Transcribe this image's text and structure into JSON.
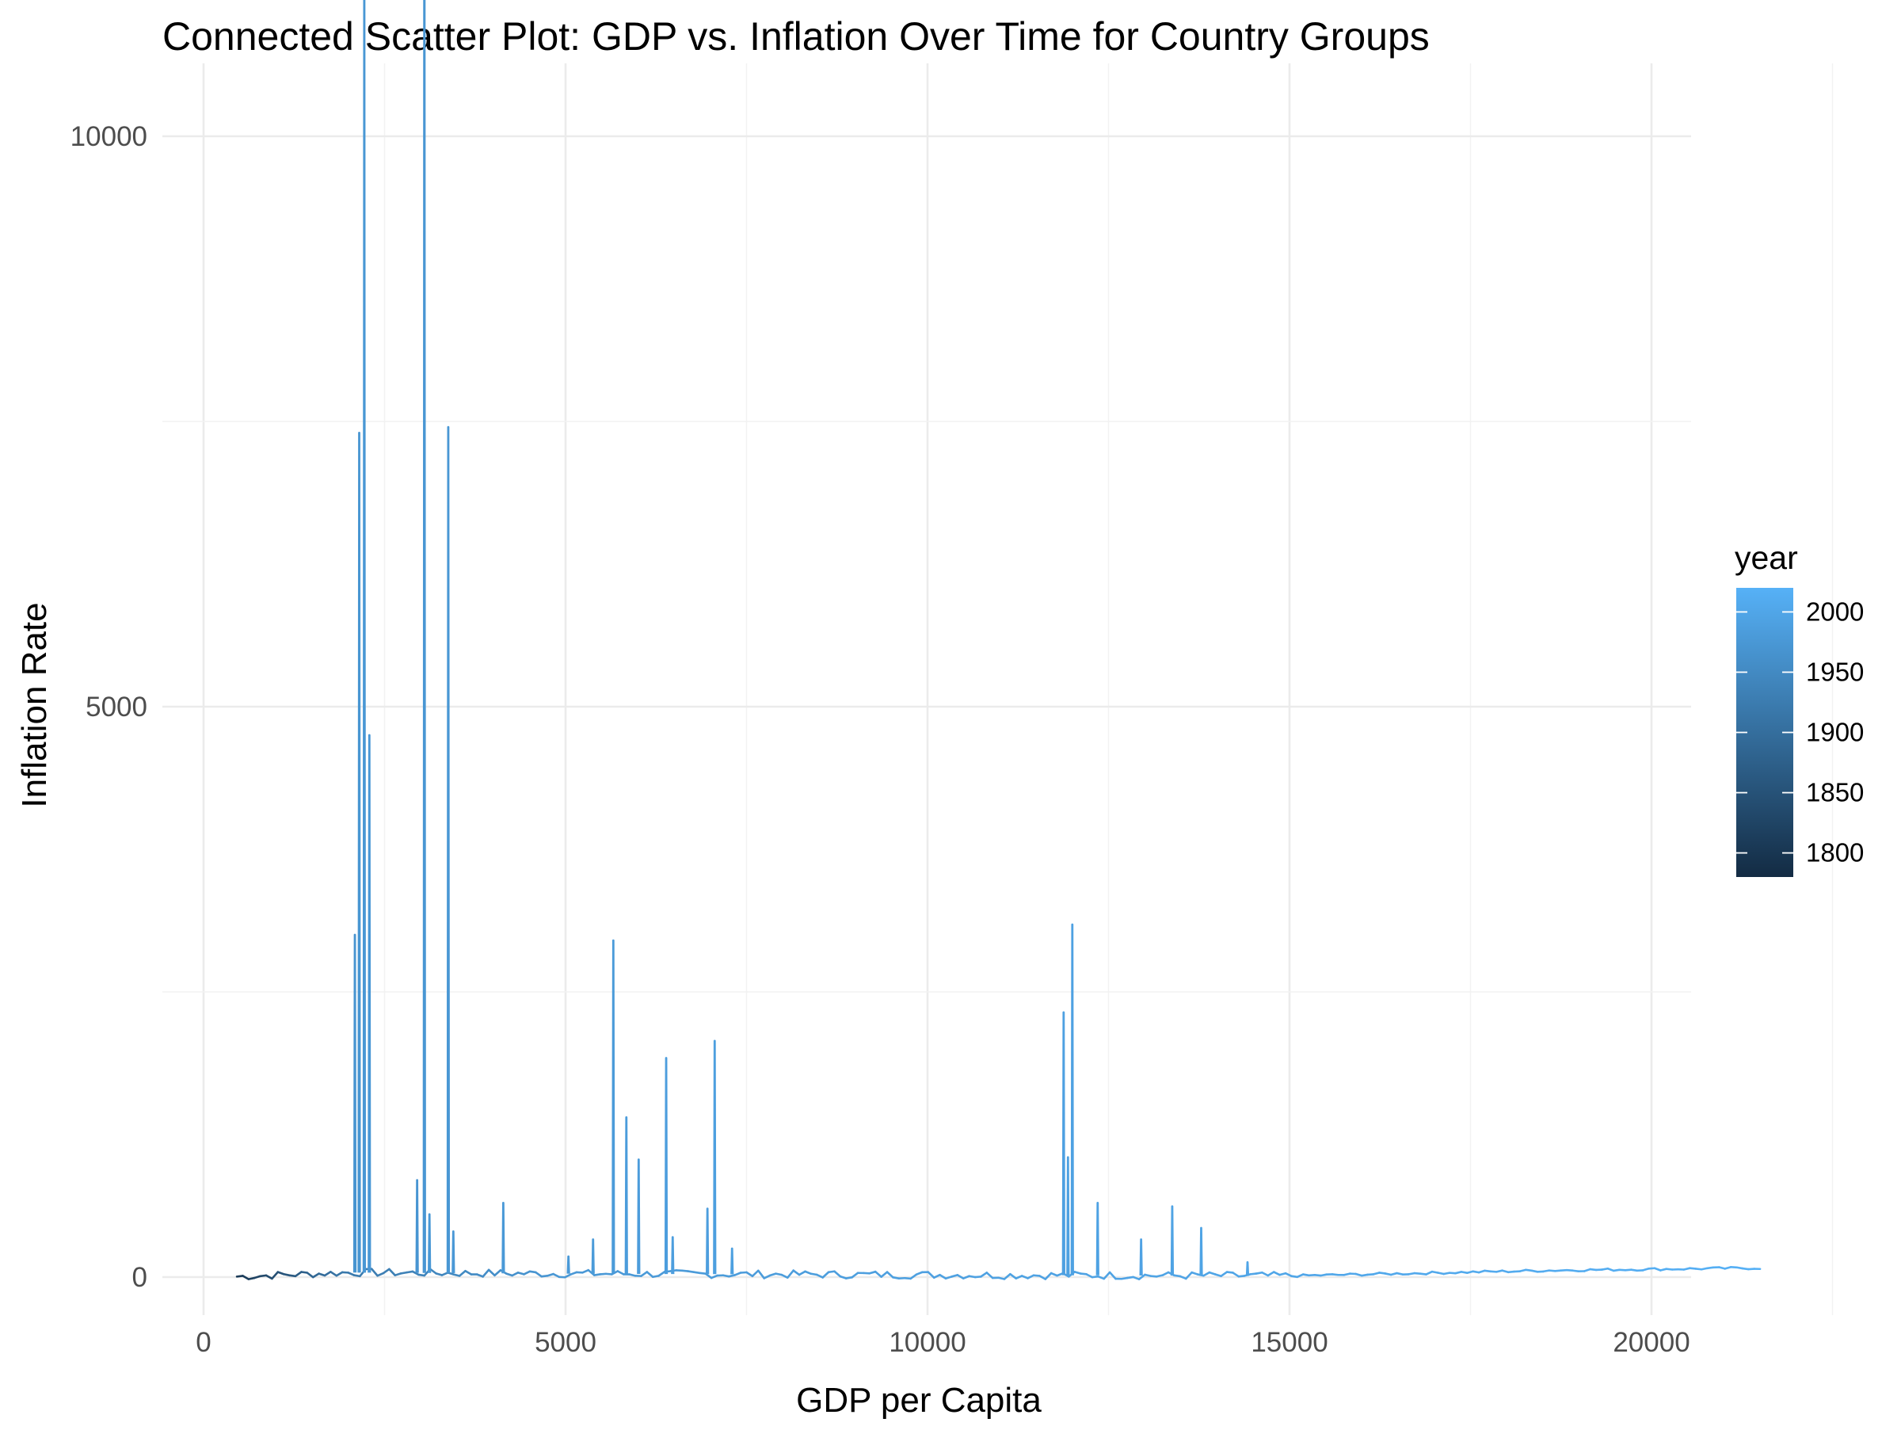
{
  "chart_data": {
    "type": "line",
    "title": "Connected Scatter Plot: GDP vs. Inflation Over Time for Country Groups",
    "xlabel": "GDP per Capita",
    "ylabel": "Inflation Rate",
    "xlim": [
      -1200,
      22600
    ],
    "ylim": [
      -700,
      13800
    ],
    "x_ticks": [
      0,
      5000,
      10000,
      15000,
      20000
    ],
    "x_tick_labels": [
      "0",
      "5000",
      "10000",
      "15000",
      "20000"
    ],
    "y_ticks": [
      0,
      5000,
      10000
    ],
    "y_tick_labels": [
      "0",
      "5000",
      "10000"
    ],
    "grid": true,
    "legend": {
      "title": "year",
      "position": "right",
      "type": "colorbar",
      "range": [
        1780,
        2020
      ],
      "ticks": [
        1800,
        1850,
        1900,
        1950,
        2000
      ],
      "tick_labels": [
        "1800",
        "1850",
        "1900",
        "1950",
        "2000"
      ],
      "color_low": "#132B43",
      "color_high": "#56B1F7"
    },
    "series": [
      {
        "color_by": "year",
        "spikes": [
          {
            "x": 2090,
            "y": 3000,
            "year": 1968
          },
          {
            "x": 2150,
            "y": 7400,
            "year": 1971
          },
          {
            "x": 2220,
            "y": 11700,
            "year": 1973
          },
          {
            "x": 2290,
            "y": 4750,
            "year": 1974
          },
          {
            "x": 2950,
            "y": 850,
            "year": 1970
          },
          {
            "x": 3050,
            "y": 13250,
            "year": 1972
          },
          {
            "x": 3120,
            "y": 550,
            "year": 1975
          },
          {
            "x": 3380,
            "y": 7450,
            "year": 1973
          },
          {
            "x": 3450,
            "y": 400,
            "year": 1976
          },
          {
            "x": 4140,
            "y": 650,
            "year": 1977
          },
          {
            "x": 5040,
            "y": 180,
            "year": 1978
          },
          {
            "x": 5380,
            "y": 330,
            "year": 1980
          },
          {
            "x": 5660,
            "y": 2950,
            "year": 1980
          },
          {
            "x": 5840,
            "y": 1400,
            "year": 1982
          },
          {
            "x": 6010,
            "y": 1030,
            "year": 1983
          },
          {
            "x": 6390,
            "y": 1920,
            "year": 1985
          },
          {
            "x": 6480,
            "y": 350,
            "year": 1986
          },
          {
            "x": 6960,
            "y": 600,
            "year": 1986
          },
          {
            "x": 7060,
            "y": 2070,
            "year": 1988
          },
          {
            "x": 7300,
            "y": 250,
            "year": 1989
          },
          {
            "x": 11880,
            "y": 2320,
            "year": 1990
          },
          {
            "x": 11940,
            "y": 1050,
            "year": 1991
          },
          {
            "x": 12000,
            "y": 3090,
            "year": 1992
          },
          {
            "x": 12350,
            "y": 650,
            "year": 1993
          },
          {
            "x": 12950,
            "y": 330,
            "year": 1994
          },
          {
            "x": 13380,
            "y": 620,
            "year": 1995
          },
          {
            "x": 13780,
            "y": 430,
            "year": 1996
          },
          {
            "x": 14420,
            "y": 130,
            "year": 1998
          }
        ],
        "baseline": [
          {
            "x": 460,
            "y": 5,
            "year": 1800
          },
          {
            "x": 2000,
            "y": 40,
            "year": 1920
          },
          {
            "x": 5000,
            "y": 30,
            "year": 1975
          },
          {
            "x": 10000,
            "y": 20,
            "year": 1990
          },
          {
            "x": 15000,
            "y": 10,
            "year": 2000
          },
          {
            "x": 18700,
            "y": 60,
            "year": 2010
          },
          {
            "x": 21500,
            "y": 80,
            "year": 2018
          }
        ]
      }
    ]
  }
}
